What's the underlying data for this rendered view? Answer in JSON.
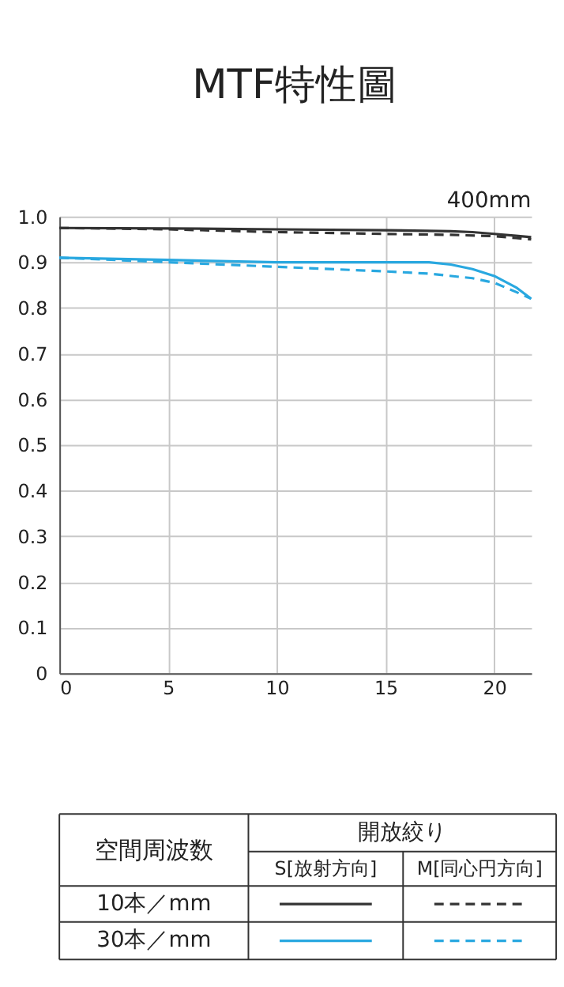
{
  "chart_data": {
    "type": "line",
    "title": "MTF特性圖",
    "subtitle": "400mm",
    "xlim": [
      0,
      21.7
    ],
    "ylim": [
      0,
      1
    ],
    "xticks": [
      0,
      5,
      10,
      15,
      20
    ],
    "yticks": [
      0,
      0.1,
      0.2,
      0.3,
      0.4,
      0.5,
      0.6,
      0.7,
      0.8,
      0.9,
      {
        "value": 1,
        "label": "1.0"
      }
    ],
    "grid": true,
    "marker": "none",
    "series": [
      {
        "color": "#333333",
        "line_style": "solid",
        "x": [
          0,
          5,
          10,
          15,
          18,
          19,
          20,
          21,
          21.7
        ],
        "values": [
          0.975,
          0.974,
          0.972,
          0.97,
          0.968,
          0.966,
          0.962,
          0.958,
          0.955
        ]
      },
      {
        "color": "#333333",
        "line_style": "dashed",
        "x": [
          0,
          5,
          10,
          15,
          18,
          20,
          21,
          21.7
        ],
        "values": [
          0.975,
          0.972,
          0.966,
          0.962,
          0.96,
          0.957,
          0.953,
          0.95
        ]
      },
      {
        "color": "#29a8e0",
        "line_style": "solid",
        "x": [
          0,
          5,
          10,
          15,
          17,
          18,
          19,
          20,
          21,
          21.7
        ],
        "values": [
          0.91,
          0.905,
          0.9,
          0.9,
          0.9,
          0.895,
          0.885,
          0.87,
          0.845,
          0.82
        ]
      },
      {
        "color": "#29a8e0",
        "line_style": "dashed",
        "x": [
          0,
          5,
          10,
          15,
          17,
          19,
          20,
          21,
          21.7
        ],
        "values": [
          0.91,
          0.9,
          0.89,
          0.88,
          0.875,
          0.865,
          0.855,
          0.835,
          0.82
        ]
      }
    ],
    "annotations": [
      "空間周波数",
      "開放絞り",
      "S[放射方向]",
      "M[同心円方向]",
      "10本／mm",
      "30本／mm"
    ]
  }
}
